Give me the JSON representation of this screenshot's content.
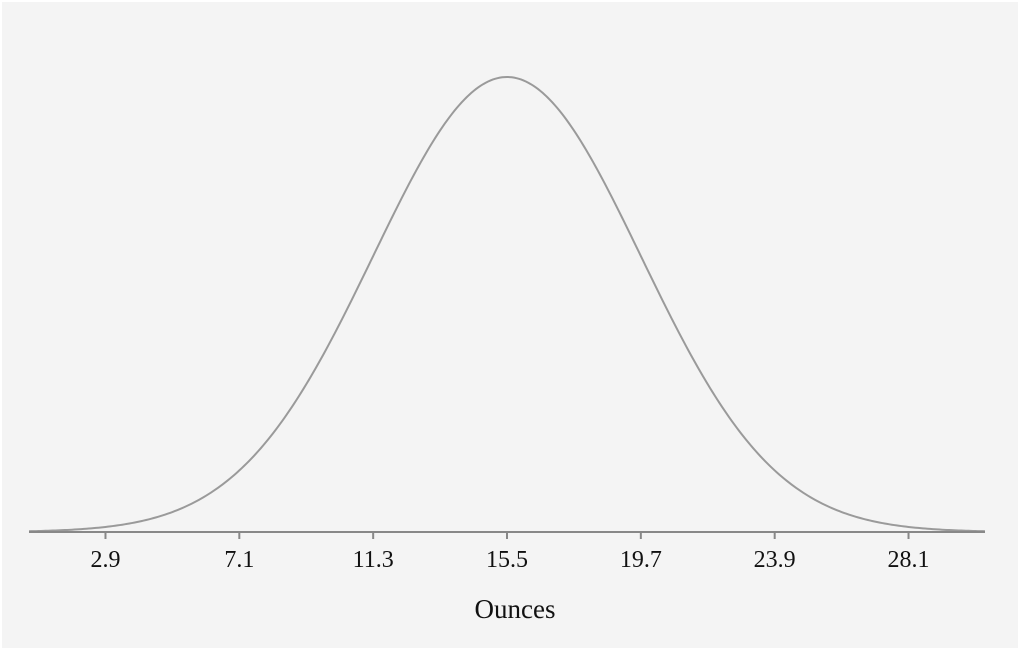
{
  "chart_data": {
    "type": "line",
    "subtype": "normal-distribution-curve",
    "title": "",
    "xlabel": "Ounces",
    "ylabel": "",
    "mean": 15.5,
    "std_dev": 4.2,
    "x_ticks": [
      "2.9",
      "7.1",
      "11.3",
      "15.5",
      "19.7",
      "23.9",
      "28.1"
    ],
    "xlim": [
      0.5,
      30.5
    ],
    "grid": false,
    "legend": "none",
    "colors": {
      "background": "#f4f4f4",
      "curve": "#9a9a9a",
      "axis": "#888888",
      "text": "#111111"
    }
  }
}
